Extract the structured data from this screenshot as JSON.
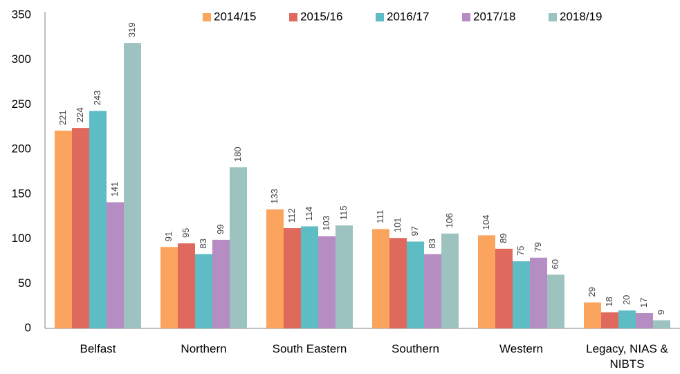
{
  "chart_data": {
    "type": "bar",
    "categories": [
      "Belfast",
      "Northern",
      "South Eastern",
      "Southern",
      "Western",
      "Legacy, NIAS & NIBTS"
    ],
    "series": [
      {
        "name": "2014/15",
        "color": "#fba45e",
        "values": [
          221,
          91,
          133,
          111,
          104,
          29
        ]
      },
      {
        "name": "2015/16",
        "color": "#e0695d",
        "values": [
          224,
          95,
          112,
          101,
          89,
          18
        ]
      },
      {
        "name": "2016/17",
        "color": "#5dbcc4",
        "values": [
          243,
          83,
          114,
          97,
          75,
          20
        ]
      },
      {
        "name": "2017/18",
        "color": "#b68dc2",
        "values": [
          141,
          99,
          103,
          83,
          79,
          17
        ]
      },
      {
        "name": "2018/19",
        "color": "#9dc3c1",
        "values": [
          319,
          180,
          115,
          106,
          60,
          9
        ]
      }
    ],
    "ylim": [
      0,
      350
    ],
    "yticks": [
      0,
      50,
      100,
      150,
      200,
      250,
      300,
      350
    ],
    "grid": false,
    "legend": "top",
    "data_labels": true
  }
}
